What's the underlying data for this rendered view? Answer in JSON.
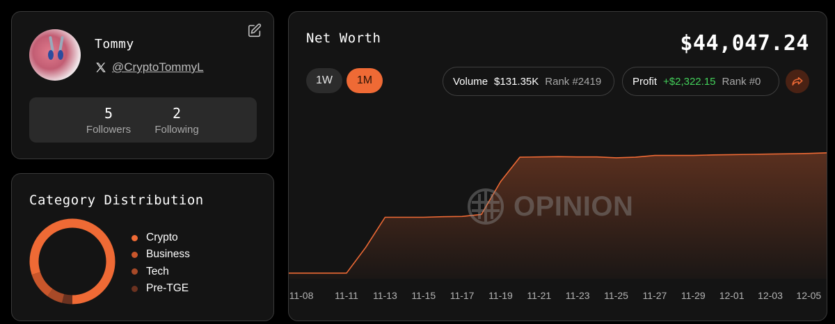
{
  "profile": {
    "username": "Tommy",
    "handle": "@CryptoTommyL",
    "followers_count": "5",
    "followers_label": "Followers",
    "following_count": "2",
    "following_label": "Following"
  },
  "category": {
    "title": "Category Distribution",
    "items": [
      {
        "label": "Crypto",
        "color": "#ef6a35",
        "share": 0.8
      },
      {
        "label": "Business",
        "color": "#c9562b",
        "share": 0.1
      },
      {
        "label": "Tech",
        "color": "#a84a28",
        "share": 0.06
      },
      {
        "label": "Pre-TGE",
        "color": "#6b3220",
        "share": 0.04
      }
    ]
  },
  "networth": {
    "title": "Net Worth",
    "value": "$44,047.24",
    "tabs": [
      "1W",
      "1M"
    ],
    "active_tab": "1M",
    "volume_label": "Volume",
    "volume_value": "$131.35K",
    "volume_rank": "Rank #2419",
    "profit_label": "Profit",
    "profit_value": "+$2,322.15",
    "profit_rank": "Rank #0",
    "watermark": "OPINION"
  },
  "chart_data": {
    "type": "area",
    "x": [
      "11-08",
      "11-09",
      "11-10",
      "11-11",
      "11-12",
      "11-13",
      "11-14",
      "11-15",
      "11-16",
      "11-17",
      "11-18",
      "11-19",
      "11-20",
      "11-21",
      "11-22",
      "11-23",
      "11-24",
      "11-25",
      "11-26",
      "11-27",
      "11-28",
      "11-29",
      "11-30",
      "12-01",
      "12-02",
      "12-03",
      "12-04",
      "12-05",
      "12-06"
    ],
    "xticks": [
      "11-08",
      "11-11",
      "11-13",
      "11-15",
      "11-17",
      "11-19",
      "11-21",
      "11-23",
      "11-25",
      "11-27",
      "11-29",
      "12-01",
      "12-03",
      "12-05"
    ],
    "values": [
      2000,
      2000,
      2000,
      2000,
      11000,
      21500,
      21500,
      21500,
      21700,
      21800,
      22500,
      34000,
      42500,
      42600,
      42700,
      42600,
      42600,
      42300,
      42500,
      43100,
      43100,
      43100,
      43300,
      43400,
      43500,
      43600,
      43700,
      43800,
      44047
    ],
    "ylim": [
      0,
      52000
    ],
    "grid": false,
    "color": "#ef6a35"
  }
}
